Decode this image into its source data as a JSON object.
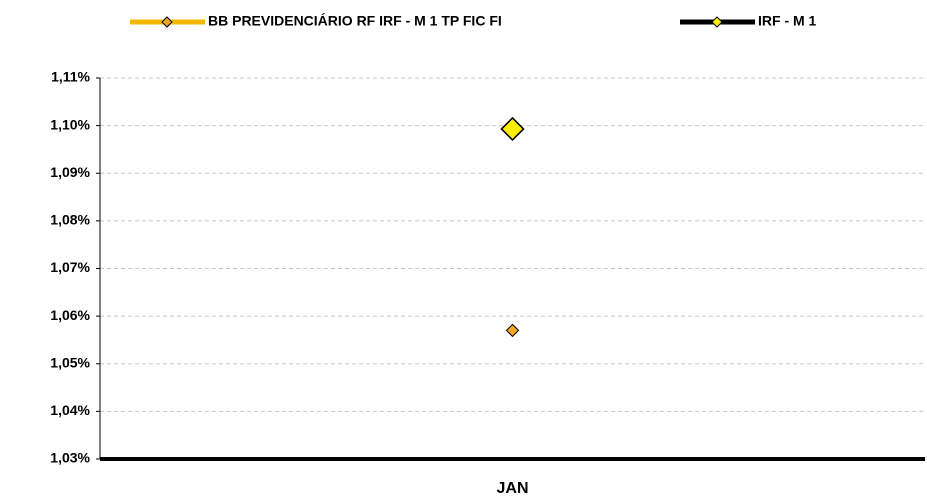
{
  "chart_data": {
    "type": "line",
    "categories": [
      "JAN"
    ],
    "series": [
      {
        "name": "BB PREVIDENCIÁRIO RF IRF - M 1 TP FIC FI",
        "color": "#f5b800",
        "marker_color": "#f5a623",
        "values": [
          1.057
        ]
      },
      {
        "name": "IRF - M 1",
        "color": "#000000",
        "marker_color": "#ffee00",
        "values": [
          1.0993
        ]
      }
    ],
    "ylim": [
      1.03,
      1.11
    ],
    "yticks": [
      {
        "value": 1.03,
        "label": "1,03%"
      },
      {
        "value": 1.04,
        "label": "1,04%"
      },
      {
        "value": 1.05,
        "label": "1,05%"
      },
      {
        "value": 1.06,
        "label": "1,06%"
      },
      {
        "value": 1.07,
        "label": "1,07%"
      },
      {
        "value": 1.08,
        "label": "1,08%"
      },
      {
        "value": 1.09,
        "label": "1,09%"
      },
      {
        "value": 1.1,
        "label": "1,10%"
      },
      {
        "value": 1.11,
        "label": "1,11%"
      }
    ],
    "grid": true,
    "legend": "top"
  }
}
